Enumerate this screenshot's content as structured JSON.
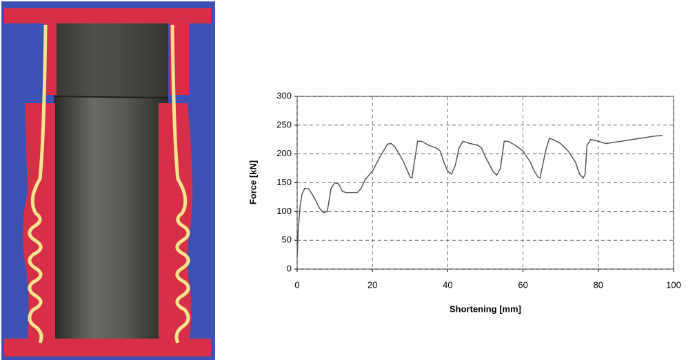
{
  "chart_data": {
    "type": "line",
    "x_label": "Shortening [mm]",
    "y_label": "Force [kN]",
    "x": [
      0,
      0.3,
      0.8,
      1.3,
      2,
      3,
      4,
      5,
      6,
      7,
      8,
      9,
      10,
      11,
      12,
      13,
      16,
      17,
      18,
      20,
      22,
      24,
      25,
      26,
      28,
      29,
      30,
      30.5,
      31,
      32,
      33,
      35,
      37,
      38,
      39,
      40,
      41,
      42,
      43,
      44,
      46,
      48,
      49,
      50,
      52,
      53,
      54,
      55,
      56,
      58,
      60,
      61,
      62,
      63,
      64,
      64.5,
      66,
      67,
      68,
      70,
      72,
      74,
      75,
      76,
      76.5,
      77,
      78,
      80,
      82,
      85,
      90,
      95,
      97
    ],
    "series": [
      {
        "color": "#555555",
        "values": [
          20,
          70,
          110,
          130,
          140,
          140,
          130,
          118,
          105,
          98,
          100,
          140,
          150,
          148,
          135,
          133,
          133,
          140,
          155,
          170,
          195,
          217,
          218,
          212,
          190,
          175,
          160,
          158,
          180,
          222,
          222,
          215,
          210,
          205,
          185,
          170,
          165,
          180,
          210,
          222,
          218,
          215,
          210,
          195,
          170,
          163,
          175,
          222,
          222,
          215,
          205,
          195,
          185,
          170,
          160,
          158,
          205,
          227,
          225,
          218,
          205,
          185,
          165,
          158,
          165,
          215,
          225,
          222,
          218,
          221,
          226,
          231,
          232
        ]
      }
    ],
    "xlim": [
      0,
      100
    ],
    "xticks": [
      0,
      20,
      40,
      60,
      80,
      100
    ],
    "ylim": [
      0,
      300
    ],
    "yticks": [
      0,
      50,
      100,
      150,
      200,
      250,
      300
    ],
    "grid": true
  }
}
